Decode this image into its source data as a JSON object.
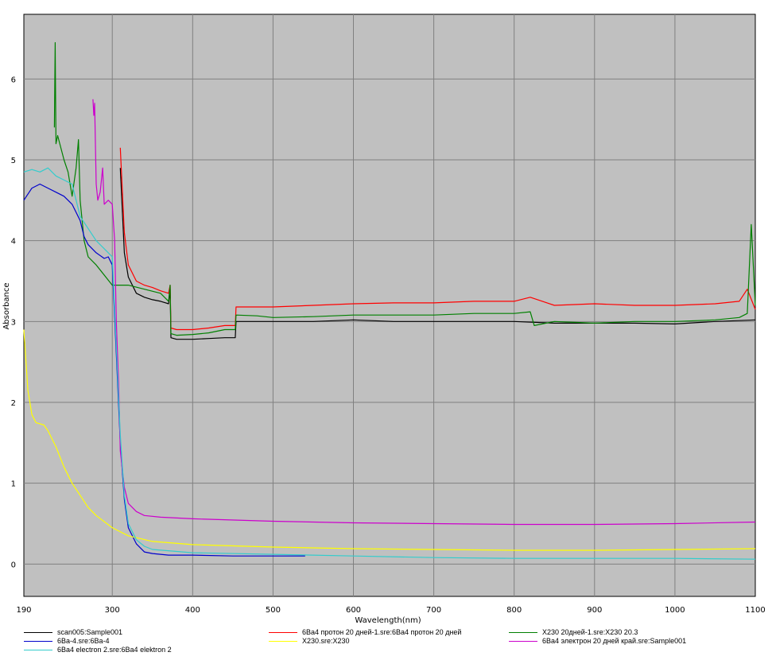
{
  "chart_data": {
    "type": "line",
    "xlabel": "Wavelength(nm)",
    "ylabel": "Absorbance",
    "xlim": [
      190,
      1100
    ],
    "ylim": [
      -0.4,
      6.8
    ],
    "x_ticks": [
      190,
      300,
      400,
      500,
      600,
      700,
      800,
      900,
      1000,
      1100
    ],
    "y_ticks": [
      0,
      1,
      2,
      3,
      4,
      5,
      6
    ],
    "grid": true,
    "plot_background": "#c0c0c0",
    "legend_position": "bottom",
    "series": [
      {
        "name": "scan005:Sample001",
        "color": "#000000",
        "points": [
          [
            310,
            4.9
          ],
          [
            315,
            3.85
          ],
          [
            320,
            3.55
          ],
          [
            330,
            3.35
          ],
          [
            340,
            3.3
          ],
          [
            350,
            3.27
          ],
          [
            360,
            3.25
          ],
          [
            370,
            3.22
          ],
          [
            372,
            3.4
          ],
          [
            373,
            2.8
          ],
          [
            380,
            2.78
          ],
          [
            400,
            2.78
          ],
          [
            420,
            2.79
          ],
          [
            440,
            2.8
          ],
          [
            453,
            2.8
          ],
          [
            454,
            3.0
          ],
          [
            480,
            3.0
          ],
          [
            500,
            3.0
          ],
          [
            550,
            3.0
          ],
          [
            600,
            3.02
          ],
          [
            650,
            3.0
          ],
          [
            700,
            3.0
          ],
          [
            750,
            3.0
          ],
          [
            800,
            3.0
          ],
          [
            850,
            2.98
          ],
          [
            900,
            2.98
          ],
          [
            950,
            2.98
          ],
          [
            1000,
            2.97
          ],
          [
            1050,
            3.0
          ],
          [
            1100,
            3.02
          ]
        ]
      },
      {
        "name": "6Ва4 протон 20 дней-1.sre:6Ва4 протон 20 дней",
        "color": "#ff0000",
        "points": [
          [
            310,
            5.15
          ],
          [
            315,
            4.1
          ],
          [
            320,
            3.7
          ],
          [
            330,
            3.5
          ],
          [
            340,
            3.45
          ],
          [
            350,
            3.42
          ],
          [
            360,
            3.38
          ],
          [
            370,
            3.35
          ],
          [
            372,
            3.45
          ],
          [
            373,
            2.92
          ],
          [
            380,
            2.9
          ],
          [
            400,
            2.9
          ],
          [
            420,
            2.92
          ],
          [
            440,
            2.95
          ],
          [
            453,
            2.95
          ],
          [
            454,
            3.18
          ],
          [
            480,
            3.18
          ],
          [
            500,
            3.18
          ],
          [
            550,
            3.2
          ],
          [
            600,
            3.22
          ],
          [
            650,
            3.23
          ],
          [
            700,
            3.23
          ],
          [
            750,
            3.25
          ],
          [
            800,
            3.25
          ],
          [
            820,
            3.3
          ],
          [
            850,
            3.2
          ],
          [
            900,
            3.22
          ],
          [
            950,
            3.2
          ],
          [
            1000,
            3.2
          ],
          [
            1050,
            3.22
          ],
          [
            1080,
            3.25
          ],
          [
            1090,
            3.4
          ],
          [
            1100,
            3.15
          ]
        ]
      },
      {
        "name": "X230 20дней-1.sre:X230 20.3",
        "color": "#008000",
        "points": [
          [
            228,
            5.4
          ],
          [
            229,
            6.45
          ],
          [
            230,
            5.2
          ],
          [
            232,
            5.3
          ],
          [
            240,
            5.0
          ],
          [
            245,
            4.85
          ],
          [
            250,
            4.55
          ],
          [
            255,
            4.9
          ],
          [
            258,
            5.25
          ],
          [
            260,
            4.5
          ],
          [
            265,
            4.0
          ],
          [
            270,
            3.8
          ],
          [
            280,
            3.7
          ],
          [
            300,
            3.45
          ],
          [
            320,
            3.45
          ],
          [
            340,
            3.4
          ],
          [
            360,
            3.35
          ],
          [
            370,
            3.25
          ],
          [
            372,
            3.45
          ],
          [
            373,
            2.85
          ],
          [
            380,
            2.83
          ],
          [
            400,
            2.84
          ],
          [
            420,
            2.86
          ],
          [
            440,
            2.9
          ],
          [
            453,
            2.9
          ],
          [
            454,
            3.08
          ],
          [
            480,
            3.07
          ],
          [
            500,
            3.05
          ],
          [
            550,
            3.06
          ],
          [
            600,
            3.08
          ],
          [
            650,
            3.08
          ],
          [
            700,
            3.08
          ],
          [
            750,
            3.1
          ],
          [
            800,
            3.1
          ],
          [
            820,
            3.12
          ],
          [
            825,
            2.95
          ],
          [
            850,
            3.0
          ],
          [
            900,
            2.98
          ],
          [
            950,
            3.0
          ],
          [
            1000,
            3.0
          ],
          [
            1050,
            3.02
          ],
          [
            1080,
            3.05
          ],
          [
            1090,
            3.1
          ],
          [
            1095,
            4.2
          ],
          [
            1100,
            3.2
          ]
        ]
      },
      {
        "name": "6Ва-4.sre:6Ва-4",
        "color": "#0000cc",
        "points": [
          [
            190,
            4.5
          ],
          [
            200,
            4.65
          ],
          [
            210,
            4.7
          ],
          [
            220,
            4.65
          ],
          [
            230,
            4.6
          ],
          [
            240,
            4.55
          ],
          [
            250,
            4.45
          ],
          [
            260,
            4.25
          ],
          [
            265,
            4.05
          ],
          [
            270,
            3.95
          ],
          [
            280,
            3.85
          ],
          [
            290,
            3.78
          ],
          [
            295,
            3.8
          ],
          [
            300,
            3.7
          ],
          [
            305,
            2.6
          ],
          [
            310,
            1.5
          ],
          [
            315,
            0.8
          ],
          [
            320,
            0.45
          ],
          [
            330,
            0.25
          ],
          [
            340,
            0.15
          ],
          [
            350,
            0.13
          ],
          [
            370,
            0.11
          ],
          [
            400,
            0.11
          ],
          [
            450,
            0.1
          ],
          [
            500,
            0.1
          ],
          [
            540,
            0.1
          ]
        ]
      },
      {
        "name": "X230.sre:X230",
        "color": "#ffff00",
        "points": [
          [
            190,
            2.9
          ],
          [
            195,
            2.15
          ],
          [
            200,
            1.85
          ],
          [
            205,
            1.75
          ],
          [
            215,
            1.72
          ],
          [
            220,
            1.65
          ],
          [
            230,
            1.45
          ],
          [
            240,
            1.2
          ],
          [
            250,
            1.0
          ],
          [
            260,
            0.85
          ],
          [
            270,
            0.7
          ],
          [
            280,
            0.6
          ],
          [
            300,
            0.45
          ],
          [
            320,
            0.35
          ],
          [
            350,
            0.28
          ],
          [
            400,
            0.24
          ],
          [
            500,
            0.21
          ],
          [
            600,
            0.19
          ],
          [
            700,
            0.18
          ],
          [
            800,
            0.17
          ],
          [
            900,
            0.17
          ],
          [
            1000,
            0.18
          ],
          [
            1100,
            0.19
          ]
        ]
      },
      {
        "name": "6Ва4 электрон 20 дней край.sre:Sample001",
        "color": "#cc00cc",
        "points": [
          [
            276,
            5.75
          ],
          [
            277,
            5.55
          ],
          [
            278,
            5.7
          ],
          [
            280,
            4.7
          ],
          [
            282,
            4.5
          ],
          [
            285,
            4.6
          ],
          [
            288,
            4.9
          ],
          [
            290,
            4.45
          ],
          [
            295,
            4.5
          ],
          [
            300,
            4.45
          ],
          [
            303,
            4.0
          ],
          [
            305,
            3.0
          ],
          [
            308,
            2.2
          ],
          [
            310,
            1.4
          ],
          [
            315,
            0.95
          ],
          [
            320,
            0.75
          ],
          [
            330,
            0.65
          ],
          [
            340,
            0.6
          ],
          [
            360,
            0.58
          ],
          [
            400,
            0.56
          ],
          [
            500,
            0.53
          ],
          [
            600,
            0.51
          ],
          [
            700,
            0.5
          ],
          [
            800,
            0.49
          ],
          [
            900,
            0.49
          ],
          [
            1000,
            0.5
          ],
          [
            1100,
            0.52
          ]
        ]
      },
      {
        "name": "6Ва4 electron 2.sre:6Ва4 elektron 2",
        "color": "#33cccc",
        "points": [
          [
            190,
            4.85
          ],
          [
            200,
            4.88
          ],
          [
            210,
            4.85
          ],
          [
            220,
            4.9
          ],
          [
            230,
            4.8
          ],
          [
            240,
            4.75
          ],
          [
            250,
            4.7
          ],
          [
            260,
            4.3
          ],
          [
            270,
            4.15
          ],
          [
            280,
            4.0
          ],
          [
            290,
            3.9
          ],
          [
            300,
            3.8
          ],
          [
            305,
            2.7
          ],
          [
            310,
            1.6
          ],
          [
            315,
            0.85
          ],
          [
            320,
            0.5
          ],
          [
            330,
            0.3
          ],
          [
            340,
            0.22
          ],
          [
            350,
            0.18
          ],
          [
            400,
            0.14
          ],
          [
            500,
            0.12
          ],
          [
            600,
            0.1
          ],
          [
            700,
            0.08
          ],
          [
            800,
            0.07
          ],
          [
            900,
            0.07
          ],
          [
            1000,
            0.07
          ],
          [
            1100,
            0.06
          ]
        ]
      }
    ]
  }
}
